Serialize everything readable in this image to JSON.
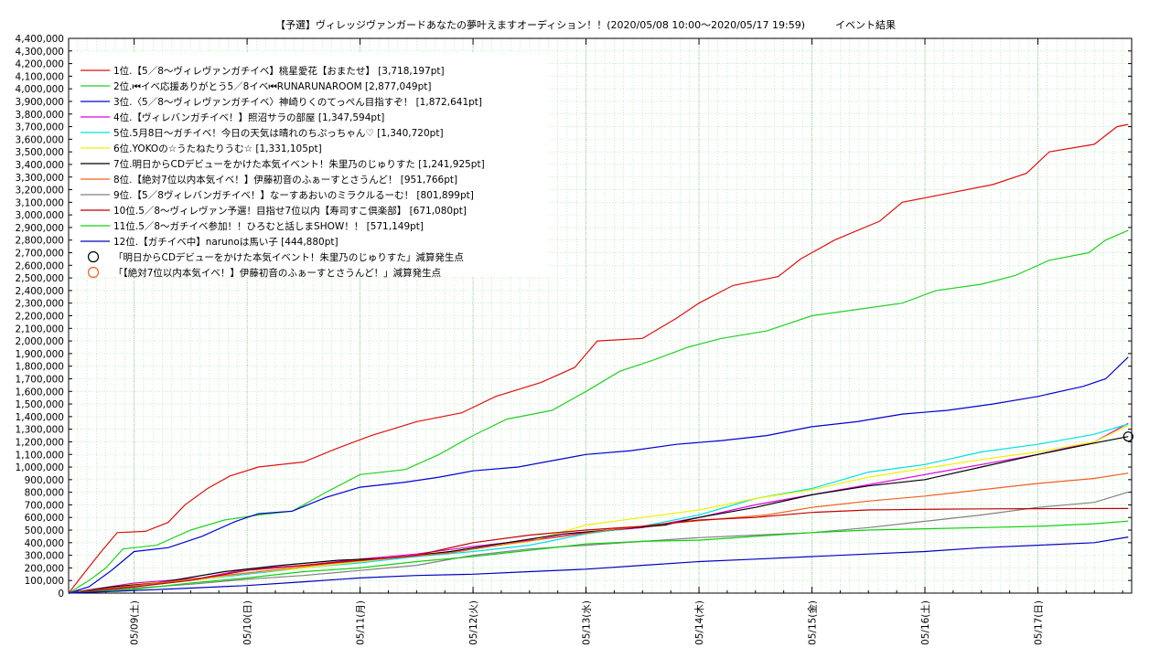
{
  "chart_data": {
    "type": "line",
    "title": "【予選】ヴィレッジヴァンガードあなたの夢叶えますオーディション！！(2020/05/08 10:00～2020/05/17 19:59)　　　イベント結果",
    "xlabel": "",
    "ylabel": "",
    "x_ticks": [
      "05/09(土)",
      "05/10(日)",
      "05/11(月)",
      "05/12(火)",
      "05/13(水)",
      "05/14(木)",
      "05/15(金)",
      "05/16(土)",
      "05/17(日)"
    ],
    "x_tick_days": [
      1,
      2,
      3,
      4,
      5,
      6,
      7,
      8,
      9
    ],
    "xlim_days": [
      0.42,
      9.83
    ],
    "ylim": [
      0,
      4400000
    ],
    "y_tick_step": 100000,
    "grid": true,
    "legend_position": "top-left",
    "series": [
      {
        "name": "1位.【5／8～ヴィレヴァンガチイベ】桃星愛花【おまたせ】 [3,718,197pt]",
        "color": "#e01010",
        "points": [
          [
            0.42,
            0
          ],
          [
            0.55,
            150000
          ],
          [
            0.7,
            320000
          ],
          [
            0.85,
            480000
          ],
          [
            1.1,
            490000
          ],
          [
            1.3,
            560000
          ],
          [
            1.45,
            700000
          ],
          [
            1.65,
            830000
          ],
          [
            1.85,
            930000
          ],
          [
            2.1,
            1000000
          ],
          [
            2.5,
            1040000
          ],
          [
            2.8,
            1150000
          ],
          [
            3.1,
            1250000
          ],
          [
            3.5,
            1360000
          ],
          [
            3.9,
            1430000
          ],
          [
            4.2,
            1560000
          ],
          [
            4.6,
            1670000
          ],
          [
            4.9,
            1790000
          ],
          [
            5.1,
            2000000
          ],
          [
            5.5,
            2020000
          ],
          [
            5.8,
            2180000
          ],
          [
            6.0,
            2300000
          ],
          [
            6.3,
            2440000
          ],
          [
            6.7,
            2510000
          ],
          [
            6.9,
            2650000
          ],
          [
            7.2,
            2800000
          ],
          [
            7.6,
            2950000
          ],
          [
            7.8,
            3100000
          ],
          [
            8.2,
            3170000
          ],
          [
            8.6,
            3240000
          ],
          [
            8.9,
            3330000
          ],
          [
            9.1,
            3500000
          ],
          [
            9.5,
            3560000
          ],
          [
            9.7,
            3700000
          ],
          [
            9.8,
            3718197
          ]
        ]
      },
      {
        "name": "2位.⏮イベ応援ありがとう5／8イベ⏮RUNARUNAROOM [2,877,049pt]",
        "color": "#22d022",
        "points": [
          [
            0.42,
            0
          ],
          [
            0.6,
            100000
          ],
          [
            0.75,
            200000
          ],
          [
            0.9,
            350000
          ],
          [
            1.2,
            380000
          ],
          [
            1.5,
            500000
          ],
          [
            1.8,
            580000
          ],
          [
            2.1,
            620000
          ],
          [
            2.4,
            650000
          ],
          [
            2.7,
            800000
          ],
          [
            3.0,
            940000
          ],
          [
            3.4,
            980000
          ],
          [
            3.7,
            1100000
          ],
          [
            4.0,
            1250000
          ],
          [
            4.3,
            1380000
          ],
          [
            4.7,
            1450000
          ],
          [
            5.0,
            1600000
          ],
          [
            5.3,
            1760000
          ],
          [
            5.6,
            1850000
          ],
          [
            5.9,
            1950000
          ],
          [
            6.2,
            2020000
          ],
          [
            6.6,
            2080000
          ],
          [
            7.0,
            2200000
          ],
          [
            7.4,
            2250000
          ],
          [
            7.8,
            2300000
          ],
          [
            8.1,
            2400000
          ],
          [
            8.5,
            2450000
          ],
          [
            8.8,
            2520000
          ],
          [
            9.1,
            2640000
          ],
          [
            9.45,
            2700000
          ],
          [
            9.6,
            2800000
          ],
          [
            9.8,
            2877049
          ]
        ]
      },
      {
        "name": "3位.〈5／8～ヴィレヴァンガチイベ〉神崎りくのてっぺん目指すぞ！ [1,872,641pt]",
        "color": "#0000d0",
        "points": [
          [
            0.42,
            0
          ],
          [
            0.6,
            50000
          ],
          [
            0.8,
            180000
          ],
          [
            1.0,
            330000
          ],
          [
            1.3,
            360000
          ],
          [
            1.6,
            450000
          ],
          [
            1.9,
            570000
          ],
          [
            2.1,
            630000
          ],
          [
            2.4,
            650000
          ],
          [
            2.7,
            760000
          ],
          [
            3.0,
            840000
          ],
          [
            3.4,
            880000
          ],
          [
            3.7,
            920000
          ],
          [
            4.0,
            970000
          ],
          [
            4.4,
            1000000
          ],
          [
            4.7,
            1050000
          ],
          [
            5.0,
            1100000
          ],
          [
            5.4,
            1130000
          ],
          [
            5.8,
            1180000
          ],
          [
            6.2,
            1210000
          ],
          [
            6.6,
            1250000
          ],
          [
            7.0,
            1320000
          ],
          [
            7.4,
            1360000
          ],
          [
            7.8,
            1420000
          ],
          [
            8.2,
            1450000
          ],
          [
            8.6,
            1500000
          ],
          [
            9.0,
            1560000
          ],
          [
            9.4,
            1640000
          ],
          [
            9.6,
            1700000
          ],
          [
            9.8,
            1872641
          ]
        ]
      },
      {
        "name": "4位.【ヴィレバンガチイベ！】照沼サラの部屋 [1,347,594pt]",
        "color": "#e000e0",
        "points": [
          [
            0.42,
            0
          ],
          [
            1.0,
            80000
          ],
          [
            1.6,
            120000
          ],
          [
            2.0,
            190000
          ],
          [
            2.5,
            220000
          ],
          [
            3.0,
            270000
          ],
          [
            3.5,
            310000
          ],
          [
            4.0,
            370000
          ],
          [
            4.5,
            420000
          ],
          [
            5.0,
            480000
          ],
          [
            5.5,
            520000
          ],
          [
            6.0,
            600000
          ],
          [
            6.5,
            700000
          ],
          [
            7.0,
            780000
          ],
          [
            7.5,
            860000
          ],
          [
            8.0,
            940000
          ],
          [
            8.5,
            1020000
          ],
          [
            9.0,
            1100000
          ],
          [
            9.5,
            1200000
          ],
          [
            9.8,
            1347594
          ]
        ]
      },
      {
        "name": "5位.5月8日～ガチイベ！今日の天気は晴れのちぷっちゃん♡ [1,340,720pt]",
        "color": "#00e0e0",
        "points": [
          [
            0.42,
            0
          ],
          [
            1.0,
            60000
          ],
          [
            1.6,
            110000
          ],
          [
            2.0,
            150000
          ],
          [
            2.5,
            200000
          ],
          [
            3.0,
            240000
          ],
          [
            3.5,
            290000
          ],
          [
            4.0,
            330000
          ],
          [
            4.5,
            380000
          ],
          [
            5.0,
            470000
          ],
          [
            5.5,
            530000
          ],
          [
            6.0,
            620000
          ],
          [
            6.5,
            750000
          ],
          [
            7.0,
            830000
          ],
          [
            7.5,
            960000
          ],
          [
            8.0,
            1020000
          ],
          [
            8.5,
            1120000
          ],
          [
            9.0,
            1180000
          ],
          [
            9.5,
            1260000
          ],
          [
            9.8,
            1340720
          ]
        ]
      },
      {
        "name": "6位.YOKOの☆うたねたりうむ☆ [1,331,105pt]",
        "color": "#f0f000",
        "points": [
          [
            0.42,
            0
          ],
          [
            1.0,
            70000
          ],
          [
            1.6,
            110000
          ],
          [
            2.0,
            160000
          ],
          [
            2.5,
            200000
          ],
          [
            3.0,
            250000
          ],
          [
            3.5,
            300000
          ],
          [
            4.0,
            350000
          ],
          [
            4.5,
            410000
          ],
          [
            5.0,
            540000
          ],
          [
            5.5,
            600000
          ],
          [
            6.0,
            660000
          ],
          [
            6.5,
            750000
          ],
          [
            7.0,
            820000
          ],
          [
            7.5,
            920000
          ],
          [
            8.0,
            990000
          ],
          [
            8.5,
            1060000
          ],
          [
            9.0,
            1120000
          ],
          [
            9.5,
            1200000
          ],
          [
            9.8,
            1331105
          ]
        ]
      },
      {
        "name": "7位.明日からCDデビューをかけた本気イベント！朱里乃のじゅりすた [1,241,925pt]",
        "color": "#000000",
        "points": [
          [
            0.42,
            0
          ],
          [
            0.8,
            50000
          ],
          [
            1.2,
            80000
          ],
          [
            1.8,
            170000
          ],
          [
            2.3,
            220000
          ],
          [
            2.8,
            260000
          ],
          [
            3.3,
            280000
          ],
          [
            3.8,
            330000
          ],
          [
            4.3,
            400000
          ],
          [
            4.8,
            470000
          ],
          [
            5.2,
            500000
          ],
          [
            5.7,
            540000
          ],
          [
            6.0,
            600000
          ],
          [
            6.5,
            680000
          ],
          [
            7.0,
            780000
          ],
          [
            7.5,
            850000
          ],
          [
            8.0,
            900000
          ],
          [
            8.5,
            1000000
          ],
          [
            9.0,
            1100000
          ],
          [
            9.5,
            1190000
          ],
          [
            9.8,
            1241925
          ]
        ]
      },
      {
        "name": "8位.【絶対7位以内本気イベ！】伊藤初音のふぁーすとさうんど！ [951,766pt]",
        "color": "#f06020",
        "points": [
          [
            0.42,
            0
          ],
          [
            0.8,
            40000
          ],
          [
            1.3,
            90000
          ],
          [
            1.8,
            140000
          ],
          [
            2.3,
            190000
          ],
          [
            2.8,
            240000
          ],
          [
            3.3,
            280000
          ],
          [
            3.8,
            320000
          ],
          [
            4.3,
            390000
          ],
          [
            4.8,
            450000
          ],
          [
            5.2,
            500000
          ],
          [
            5.7,
            550000
          ],
          [
            6.2,
            590000
          ],
          [
            6.6,
            620000
          ],
          [
            7.0,
            680000
          ],
          [
            7.5,
            730000
          ],
          [
            8.0,
            770000
          ],
          [
            8.5,
            820000
          ],
          [
            9.0,
            870000
          ],
          [
            9.5,
            910000
          ],
          [
            9.8,
            951766
          ]
        ]
      },
      {
        "name": "9位.【5／8ヴィレバンガチイベ！】なーすあおいのミラクルるーむ！ [801,899pt]",
        "color": "#808080",
        "points": [
          [
            0.42,
            0
          ],
          [
            1.0,
            40000
          ],
          [
            1.5,
            70000
          ],
          [
            2.0,
            110000
          ],
          [
            2.5,
            140000
          ],
          [
            3.0,
            180000
          ],
          [
            3.5,
            220000
          ],
          [
            4.0,
            300000
          ],
          [
            4.5,
            350000
          ],
          [
            5.0,
            380000
          ],
          [
            5.5,
            410000
          ],
          [
            6.0,
            440000
          ],
          [
            6.5,
            460000
          ],
          [
            7.0,
            480000
          ],
          [
            7.5,
            520000
          ],
          [
            8.0,
            570000
          ],
          [
            8.5,
            620000
          ],
          [
            9.0,
            680000
          ],
          [
            9.5,
            720000
          ],
          [
            9.8,
            801899
          ]
        ]
      },
      {
        "name": "10位.5／8～ヴィレヴァン予選！目指せ7位以内【寿司すこ倶楽部】 [671,080pt]",
        "color": "#c00000",
        "points": [
          [
            0.42,
            0
          ],
          [
            1.0,
            50000
          ],
          [
            1.5,
            100000
          ],
          [
            2.0,
            180000
          ],
          [
            2.5,
            220000
          ],
          [
            3.0,
            260000
          ],
          [
            3.5,
            300000
          ],
          [
            4.0,
            400000
          ],
          [
            4.5,
            460000
          ],
          [
            5.0,
            500000
          ],
          [
            5.5,
            530000
          ],
          [
            6.0,
            580000
          ],
          [
            6.5,
            600000
          ],
          [
            7.0,
            640000
          ],
          [
            7.5,
            660000
          ],
          [
            8.0,
            665000
          ],
          [
            8.5,
            668000
          ],
          [
            9.0,
            670000
          ],
          [
            9.8,
            671080
          ]
        ]
      },
      {
        "name": "11位.5／8～ガチイベ参加！！ひろむと話しまSHOW！！ [571,149pt]",
        "color": "#10d010",
        "points": [
          [
            0.42,
            0
          ],
          [
            1.0,
            30000
          ],
          [
            1.5,
            80000
          ],
          [
            2.0,
            120000
          ],
          [
            2.5,
            170000
          ],
          [
            3.0,
            200000
          ],
          [
            3.5,
            250000
          ],
          [
            4.0,
            290000
          ],
          [
            4.5,
            340000
          ],
          [
            5.0,
            390000
          ],
          [
            5.5,
            410000
          ],
          [
            6.0,
            420000
          ],
          [
            6.5,
            450000
          ],
          [
            7.0,
            480000
          ],
          [
            7.5,
            500000
          ],
          [
            8.0,
            510000
          ],
          [
            8.5,
            520000
          ],
          [
            9.0,
            530000
          ],
          [
            9.5,
            550000
          ],
          [
            9.8,
            571149
          ]
        ]
      },
      {
        "name": "12位.【ガチイベ中】narunoは馬い子 [444,880pt]",
        "color": "#0000c0",
        "points": [
          [
            0.42,
            0
          ],
          [
            1.0,
            20000
          ],
          [
            1.5,
            40000
          ],
          [
            2.0,
            60000
          ],
          [
            2.5,
            90000
          ],
          [
            3.0,
            120000
          ],
          [
            3.5,
            140000
          ],
          [
            4.0,
            150000
          ],
          [
            4.5,
            170000
          ],
          [
            5.0,
            190000
          ],
          [
            5.5,
            220000
          ],
          [
            6.0,
            250000
          ],
          [
            6.5,
            270000
          ],
          [
            7.0,
            290000
          ],
          [
            7.5,
            310000
          ],
          [
            8.0,
            330000
          ],
          [
            8.5,
            360000
          ],
          [
            9.0,
            380000
          ],
          [
            9.5,
            400000
          ],
          [
            9.8,
            444880
          ]
        ]
      }
    ],
    "markers": [
      {
        "name": "「明日からCDデビューをかけた本気イベント！朱里乃のじゅりすた」減算発生点",
        "color": "#000000",
        "points": [
          [
            9.8,
            1241925
          ]
        ]
      },
      {
        "name": "「【絶対7位以内本気イベ！】伊藤初音のふぁーすとさうんど！」減算発生点",
        "color": "#f06020",
        "points": []
      }
    ]
  }
}
